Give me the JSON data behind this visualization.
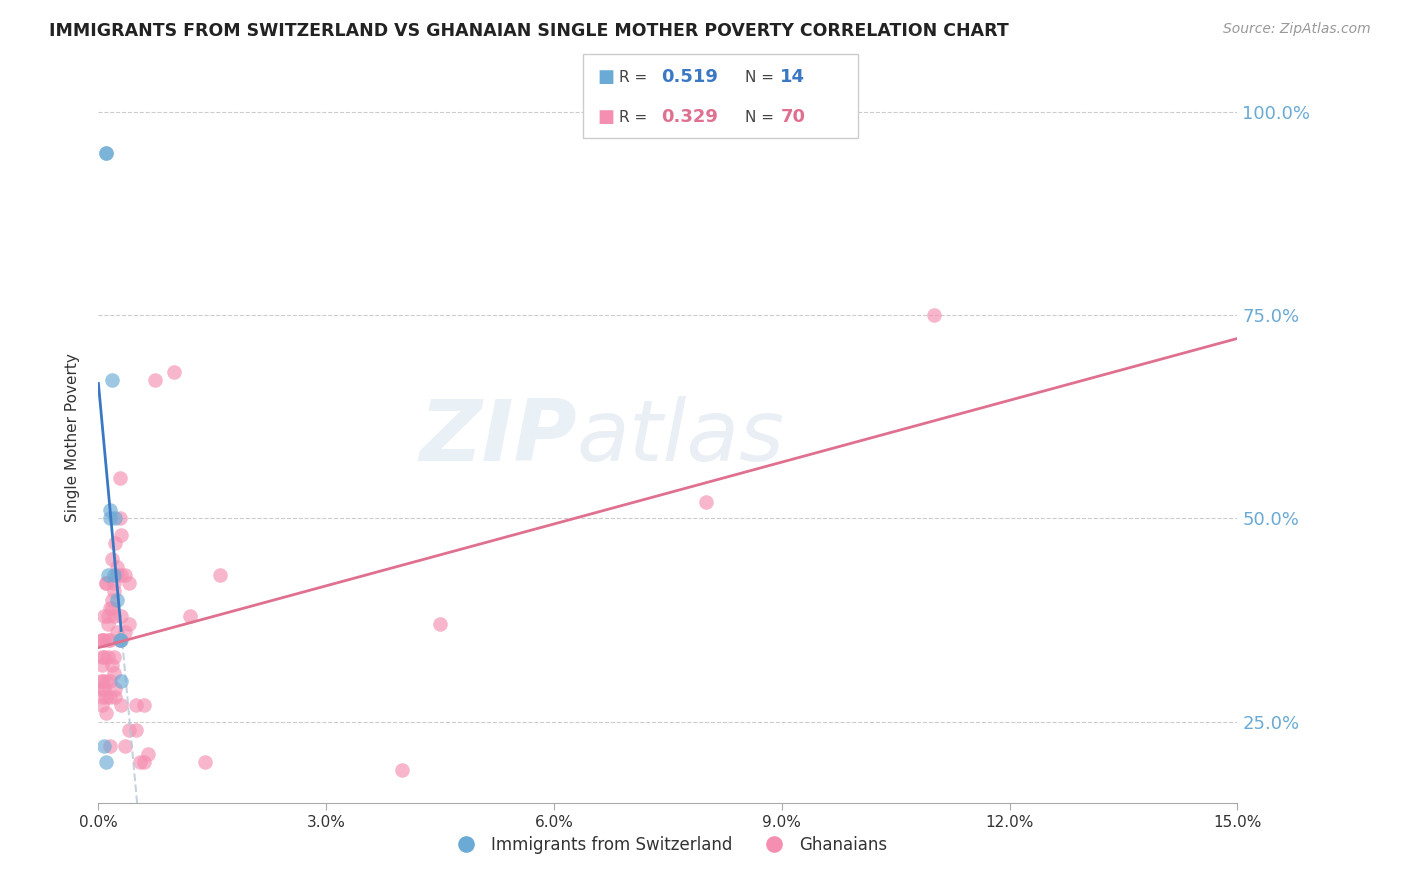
{
  "title": "IMMIGRANTS FROM SWITZERLAND VS GHANAIAN SINGLE MOTHER POVERTY CORRELATION CHART",
  "source": "Source: ZipAtlas.com",
  "ylabel": "Single Mother Poverty",
  "legend_label1": "Immigrants from Switzerland",
  "legend_label2": "Ghanaians",
  "R1": 0.519,
  "N1": 14,
  "R2": 0.329,
  "N2": 70,
  "xlim": [
    0.0,
    0.15
  ],
  "ylim": [
    0.15,
    1.05
  ],
  "color_blue": "#6aaad4",
  "color_pink": "#f48fb1",
  "color_blue_line": "#3b78c4",
  "color_pink_line": "#e07090",
  "color_right_axis": "#6aaad4",
  "watermark_zip": "ZIP",
  "watermark_atlas": "atlas",
  "swiss_x": [
    0.0008,
    0.001,
    0.001,
    0.0012,
    0.0015,
    0.0015,
    0.0018,
    0.002,
    0.0022,
    0.0025,
    0.0028,
    0.003,
    0.003,
    0.001
  ],
  "swiss_y": [
    0.22,
    0.95,
    0.95,
    0.43,
    0.5,
    0.51,
    0.67,
    0.43,
    0.5,
    0.4,
    0.35,
    0.35,
    0.3,
    0.2
  ],
  "ghana_x": [
    0.0005,
    0.0005,
    0.0005,
    0.0005,
    0.0005,
    0.0005,
    0.0005,
    0.0005,
    0.0005,
    0.0008,
    0.0008,
    0.0008,
    0.0008,
    0.001,
    0.001,
    0.001,
    0.001,
    0.001,
    0.0012,
    0.0012,
    0.0012,
    0.0012,
    0.0015,
    0.0015,
    0.0015,
    0.0015,
    0.0015,
    0.0018,
    0.0018,
    0.0018,
    0.0018,
    0.002,
    0.002,
    0.002,
    0.002,
    0.002,
    0.0022,
    0.0022,
    0.0022,
    0.0025,
    0.0025,
    0.0025,
    0.0028,
    0.0028,
    0.0028,
    0.003,
    0.003,
    0.003,
    0.003,
    0.0035,
    0.0035,
    0.0035,
    0.004,
    0.004,
    0.004,
    0.005,
    0.005,
    0.0055,
    0.006,
    0.006,
    0.0065,
    0.0075,
    0.01,
    0.012,
    0.014,
    0.016,
    0.04,
    0.045,
    0.08,
    0.11
  ],
  "ghana_y": [
    0.35,
    0.35,
    0.32,
    0.3,
    0.3,
    0.33,
    0.29,
    0.27,
    0.28,
    0.33,
    0.35,
    0.38,
    0.29,
    0.42,
    0.42,
    0.26,
    0.3,
    0.28,
    0.33,
    0.35,
    0.37,
    0.38,
    0.39,
    0.3,
    0.28,
    0.22,
    0.35,
    0.32,
    0.45,
    0.4,
    0.39,
    0.33,
    0.42,
    0.38,
    0.41,
    0.31,
    0.29,
    0.28,
    0.47,
    0.43,
    0.44,
    0.36,
    0.35,
    0.55,
    0.5,
    0.48,
    0.38,
    0.27,
    0.43,
    0.36,
    0.22,
    0.43,
    0.37,
    0.24,
    0.42,
    0.24,
    0.27,
    0.2,
    0.2,
    0.27,
    0.21,
    0.67,
    0.68,
    0.38,
    0.2,
    0.43,
    0.19,
    0.37,
    0.52,
    0.75
  ],
  "yticks": [
    0.25,
    0.5,
    0.75,
    1.0
  ],
  "ytick_labels": [
    "25.0%",
    "50.0%",
    "75.0%",
    "100.0%"
  ],
  "xticks": [
    0.0,
    0.03,
    0.06,
    0.09,
    0.12,
    0.15
  ],
  "xtick_labels": [
    "0.0%",
    "3.0%",
    "6.0%",
    "9.0%",
    "12.0%",
    "15.0%"
  ]
}
